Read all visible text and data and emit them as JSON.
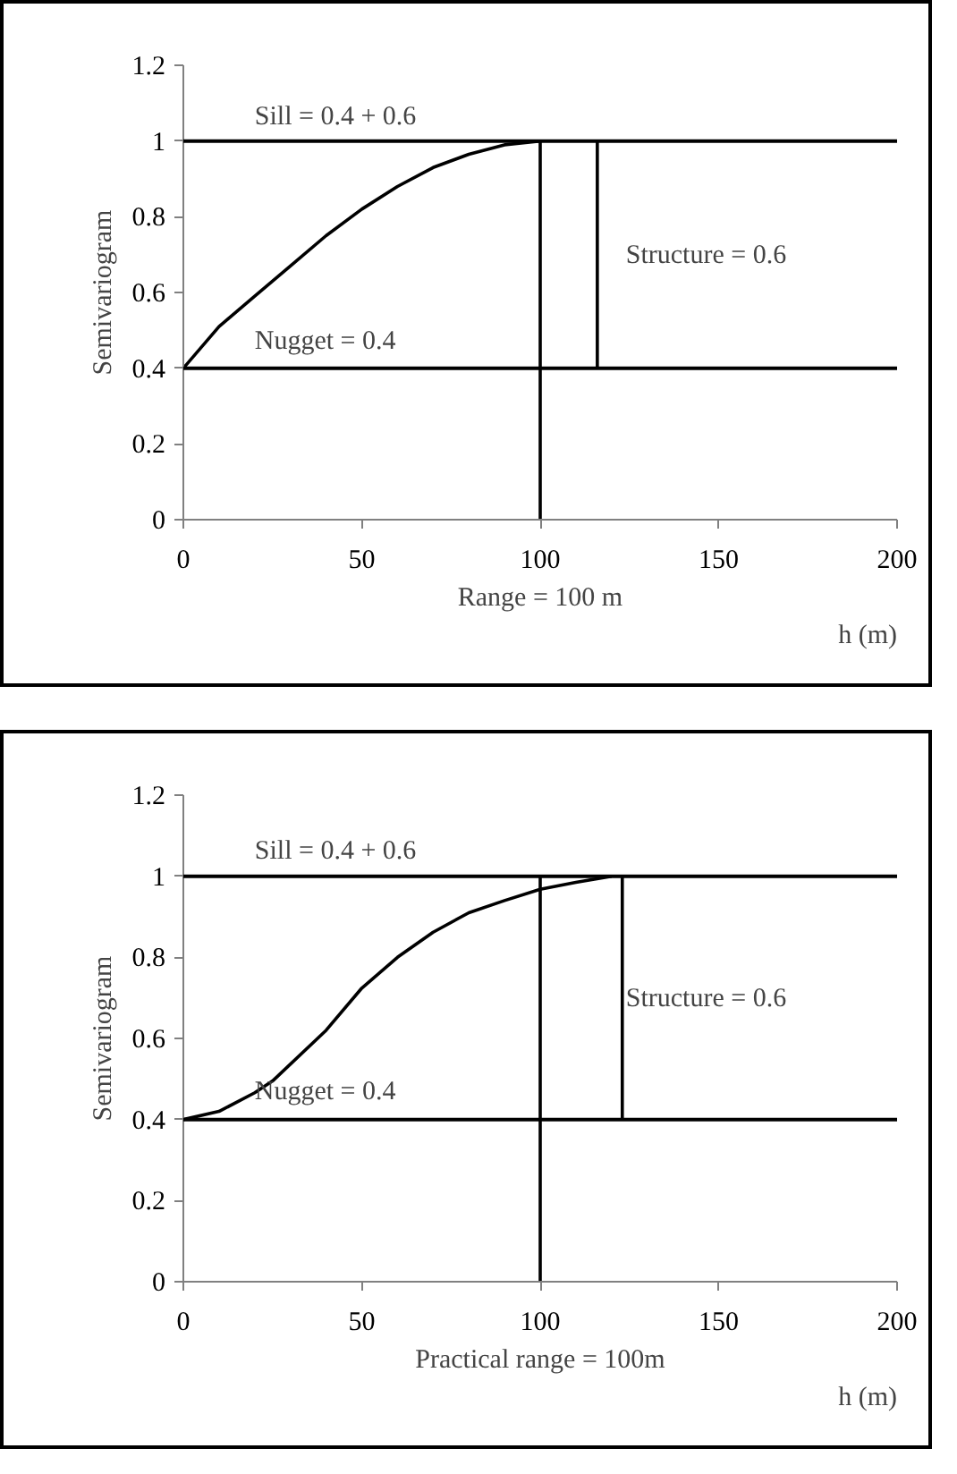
{
  "chart_data": [
    {
      "type": "line",
      "ylabel": "Semivariogram",
      "xlabel": "h (m)",
      "xlim": [
        0,
        200
      ],
      "ylim": [
        0,
        1.2
      ],
      "xticks": [
        0,
        50,
        100,
        150,
        200
      ],
      "yticks": [
        0,
        0.2,
        0.4,
        0.6,
        0.8,
        1,
        1.2
      ],
      "grid": false,
      "series": [
        {
          "color": "#000000",
          "x": [
            0,
            10,
            20,
            30,
            40,
            50,
            60,
            70,
            80,
            90,
            100
          ],
          "values": [
            0.4,
            0.51,
            0.59,
            0.67,
            0.75,
            0.82,
            0.88,
            0.93,
            0.965,
            0.99,
            1.0
          ]
        },
        {
          "color": "#000000",
          "x": [
            100,
            100
          ],
          "values": [
            0,
            1
          ]
        },
        {
          "color": "#000000",
          "x": [
            116,
            116
          ],
          "values": [
            0.4,
            1
          ]
        }
      ],
      "ref_lines": [
        {
          "axis": "y",
          "value": 1,
          "color": "#000000"
        },
        {
          "axis": "y",
          "value": 0.4,
          "color": "#000000"
        }
      ],
      "annotations": [
        "Sill = 0.4 + 0.6",
        "Nugget = 0.4",
        "Structure = 0.6",
        "Range = 100 m"
      ]
    },
    {
      "type": "line",
      "ylabel": "Semivariogram",
      "xlabel": "h (m)",
      "xlim": [
        0,
        200
      ],
      "ylim": [
        0,
        1.2
      ],
      "xticks": [
        0,
        50,
        100,
        150,
        200
      ],
      "yticks": [
        0,
        0.2,
        0.4,
        0.6,
        0.8,
        1,
        1.2
      ],
      "grid": false,
      "series": [
        {
          "color": "#000000",
          "x": [
            0,
            10,
            20,
            25,
            40,
            50,
            60,
            70,
            80,
            90,
            100,
            110,
            120
          ],
          "values": [
            0.4,
            0.42,
            0.466,
            0.495,
            0.62,
            0.724,
            0.8,
            0.862,
            0.91,
            0.94,
            0.968,
            0.985,
            1.0
          ]
        },
        {
          "color": "#000000",
          "x": [
            100,
            100
          ],
          "values": [
            0,
            1
          ]
        },
        {
          "color": "#000000",
          "x": [
            123,
            123
          ],
          "values": [
            0.4,
            1
          ]
        }
      ],
      "ref_lines": [
        {
          "axis": "y",
          "value": 1,
          "color": "#000000"
        },
        {
          "axis": "y",
          "value": 0.4,
          "color": "#000000"
        }
      ],
      "annotations": [
        "Sill = 0.4 + 0.6",
        "Nugget = 0.4",
        "Structure = 0.6",
        "Practical range = 100m"
      ]
    }
  ]
}
